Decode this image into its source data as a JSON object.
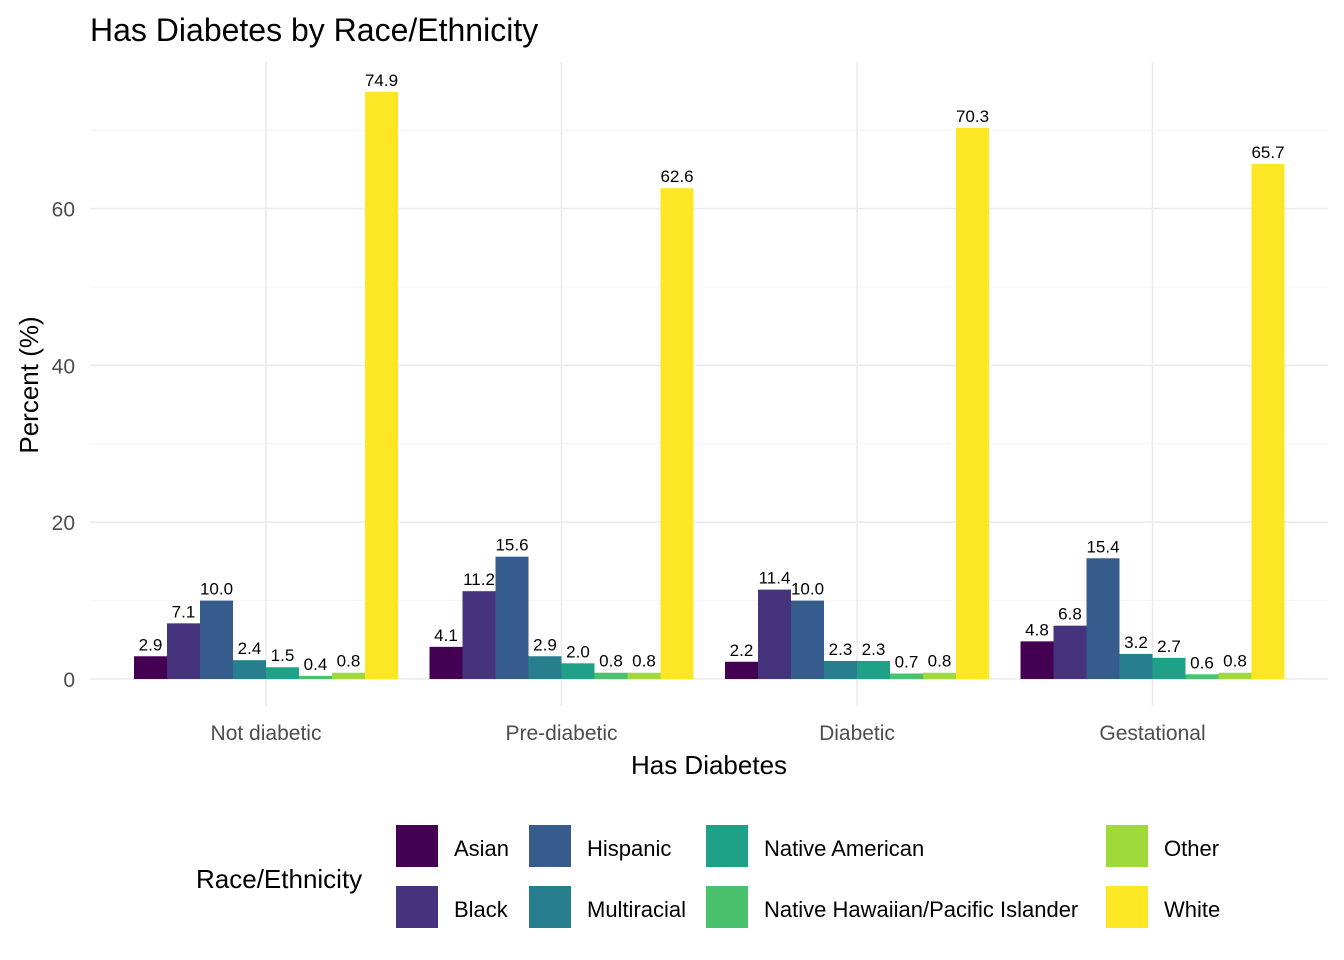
{
  "chart_data": {
    "type": "bar",
    "title": "Has Diabetes by Race/Ethnicity",
    "xlabel": "Has Diabetes",
    "ylabel": "Percent (%)",
    "ylim": [
      0,
      78
    ],
    "yticks": [
      0,
      20,
      40,
      60
    ],
    "grid": true,
    "legend_title": "Race/Ethnicity",
    "legend_position": "bottom",
    "categories": [
      "Not diabetic",
      "Pre-diabetic",
      "Diabetic",
      "Gestational"
    ],
    "series": [
      {
        "name": "Asian",
        "color": "#440154",
        "values": [
          2.9,
          4.1,
          2.2,
          4.8
        ]
      },
      {
        "name": "Black",
        "color": "#46337E",
        "values": [
          7.1,
          11.2,
          11.4,
          6.8
        ]
      },
      {
        "name": "Hispanic",
        "color": "#365C8D",
        "values": [
          10.0,
          15.6,
          10.0,
          15.4
        ]
      },
      {
        "name": "Multiracial",
        "color": "#277F8E",
        "values": [
          2.4,
          2.9,
          2.3,
          3.2
        ]
      },
      {
        "name": "Native American",
        "color": "#1FA187",
        "values": [
          1.5,
          2.0,
          2.3,
          2.7
        ]
      },
      {
        "name": "Native Hawaiian/Pacific Islander",
        "color": "#4AC16D",
        "values": [
          0.4,
          0.8,
          0.7,
          0.6
        ]
      },
      {
        "name": "Other",
        "color": "#9FDA3A",
        "values": [
          0.8,
          0.8,
          0.8,
          0.8
        ]
      },
      {
        "name": "White",
        "color": "#FDE725",
        "values": [
          74.9,
          62.6,
          70.3,
          65.7
        ]
      }
    ]
  }
}
